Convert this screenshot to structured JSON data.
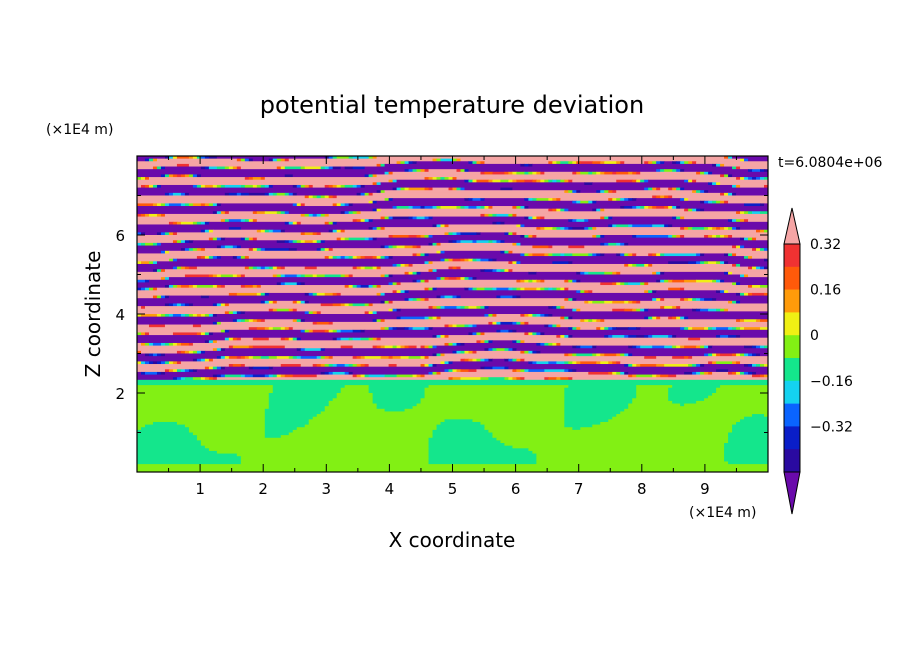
{
  "chart_data": {
    "type": "heatmap",
    "title": "potential temperature deviation",
    "xlabel": "X coordinate",
    "ylabel": "Z coordinate",
    "x_unit": "(×1E4 m)",
    "y_unit": "(×1E4 m)",
    "time_label": "t=6.0804e+06",
    "xlim": [
      0,
      10
    ],
    "ylim": [
      0,
      8
    ],
    "x_ticks": [
      "1",
      "2",
      "3",
      "4",
      "5",
      "6",
      "7",
      "8",
      "9"
    ],
    "y_ticks": [
      "2",
      "4",
      "6"
    ],
    "colorbar": {
      "levels": [
        -0.4,
        -0.32,
        -0.24,
        -0.16,
        -0.08,
        0,
        0.08,
        0.16,
        0.24,
        0.32,
        0.4
      ],
      "colors": [
        "#6a0aab",
        "#2a0aa0",
        "#0a1ec8",
        "#0a64ff",
        "#14d2f0",
        "#14e68c",
        "#82f014",
        "#f0f014",
        "#ff9b0a",
        "#ff5a0a",
        "#f03232",
        "#f5a5a5"
      ],
      "labels": [
        "0.32",
        "0.16",
        "0",
        "-0.16",
        "-0.32"
      ],
      "extend": "both"
    },
    "description_levels": {
      "upper_layer": "alternating bands of warm (>0.4) and cold (<-0.4) deviation between Z≈2.3 and Z≈8",
      "lower_layer": "weak deviation (-0.08 to 0.08) below Z≈2.3"
    }
  }
}
